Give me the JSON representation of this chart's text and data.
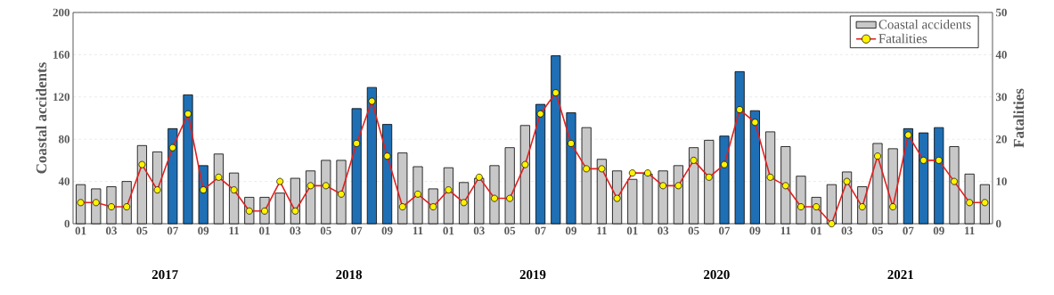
{
  "chart_data": {
    "type": "bar",
    "categories": [
      "01",
      null,
      "03",
      null,
      "05",
      null,
      "07",
      null,
      "09",
      null,
      "11",
      null,
      "01",
      null,
      "03",
      null,
      "05",
      null,
      "07",
      null,
      "09",
      null,
      "11",
      null,
      "01",
      null,
      "03",
      null,
      "05",
      null,
      "07",
      null,
      "09",
      null,
      "11",
      null,
      "01",
      null,
      "03",
      null,
      "05",
      null,
      "07",
      null,
      "09",
      null,
      "11",
      null,
      "01",
      null,
      "03",
      null,
      "05",
      null,
      "07",
      null,
      "09",
      null,
      "11",
      null
    ],
    "series": [
      {
        "name": "Coastal accidents",
        "color": "#c8c8c8",
        "colors": [
          "#c8c8c8",
          "#c8c8c8",
          "#c8c8c8",
          "#c8c8c8",
          "#c8c8c8",
          "#c8c8c8",
          "#1f6fb5",
          "#1f6fb5",
          "#1f6fb5",
          "#c8c8c8",
          "#c8c8c8",
          "#c8c8c8",
          "#c8c8c8",
          "#c8c8c8",
          "#c8c8c8",
          "#c8c8c8",
          "#c8c8c8",
          "#c8c8c8",
          "#1f6fb5",
          "#1f6fb5",
          "#1f6fb5",
          "#c8c8c8",
          "#c8c8c8",
          "#c8c8c8",
          "#c8c8c8",
          "#c8c8c8",
          "#c8c8c8",
          "#c8c8c8",
          "#c8c8c8",
          "#c8c8c8",
          "#1f6fb5",
          "#1f6fb5",
          "#1f6fb5",
          "#c8c8c8",
          "#c8c8c8",
          "#c8c8c8",
          "#c8c8c8",
          "#c8c8c8",
          "#c8c8c8",
          "#c8c8c8",
          "#c8c8c8",
          "#c8c8c8",
          "#1f6fb5",
          "#1f6fb5",
          "#1f6fb5",
          "#c8c8c8",
          "#c8c8c8",
          "#c8c8c8",
          "#c8c8c8",
          "#c8c8c8",
          "#c8c8c8",
          "#c8c8c8",
          "#c8c8c8",
          "#c8c8c8",
          "#1f6fb5",
          "#1f6fb5",
          "#1f6fb5",
          "#c8c8c8",
          "#c8c8c8",
          "#c8c8c8"
        ],
        "values": [
          37,
          33,
          35,
          40,
          74,
          68,
          90,
          122,
          55,
          66,
          48,
          25,
          25,
          29,
          43,
          50,
          60,
          60,
          109,
          129,
          94,
          67,
          54,
          33,
          53,
          39,
          43,
          55,
          72,
          93,
          113,
          159,
          105,
          91,
          61,
          50,
          42,
          47,
          50,
          55,
          72,
          79,
          83,
          144,
          107,
          87,
          73,
          45,
          25,
          37,
          49,
          35,
          76,
          71,
          90,
          86,
          91,
          73,
          47,
          37
        ]
      },
      {
        "name": "Fatalities",
        "type": "line",
        "axis": "y2",
        "color": "#e02020",
        "values": [
          5,
          5,
          4,
          4,
          14,
          8,
          18,
          26,
          8,
          11,
          8,
          3,
          3,
          10,
          3,
          9,
          9,
          7,
          19,
          29,
          16,
          4,
          7,
          4,
          8,
          5,
          11,
          6,
          6,
          14,
          26,
          31,
          19,
          13,
          13,
          6,
          12,
          12,
          9,
          9,
          15,
          11,
          14,
          27,
          24,
          11,
          9,
          4,
          4,
          0,
          10,
          4,
          16,
          4,
          21,
          15,
          15,
          10,
          5,
          5
        ]
      }
    ],
    "ylabel": "Coastal accidents",
    "y2label": "Fatalities",
    "ylim": [
      0,
      200
    ],
    "yticks": [
      0,
      40,
      80,
      120,
      160,
      200
    ],
    "y2lim": [
      0,
      50
    ],
    "y2ticks": [
      0,
      10,
      20,
      30,
      40,
      50
    ],
    "annotations": [
      "2017",
      "2018",
      "2019",
      "2020",
      "2021"
    ],
    "grid": "y",
    "legend": "top right",
    "marker": "circle",
    "line_style": "solid"
  }
}
